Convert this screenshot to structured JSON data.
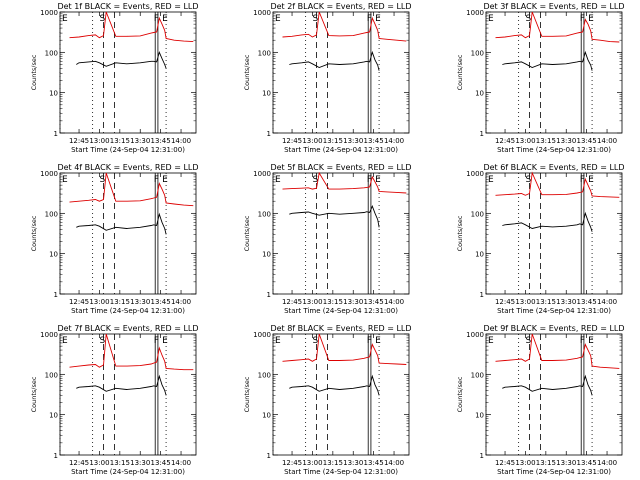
{
  "figure": {
    "start_time_label": "Start Time (24-Sep-04 12:31:00)",
    "ylabel": "Counts/sec",
    "x_ticks": [
      "12:45",
      "13:00",
      "13:15",
      "13:30",
      "13:45",
      "14:00"
    ],
    "y_ticks": [
      "1",
      "10",
      "100",
      "1000"
    ],
    "series_colors": {
      "events": "#000000",
      "lld": "#dd0000"
    },
    "markers": [
      {
        "label": "E",
        "time": "12:31",
        "style": "dotted"
      },
      {
        "label": "",
        "time": "12:55",
        "style": "dotted"
      },
      {
        "label": "S",
        "time": "13:03",
        "style": "dashed"
      },
      {
        "label": "",
        "time": "13:11",
        "style": "dashed"
      },
      {
        "label": "",
        "time": "13:41",
        "style": "solid"
      },
      {
        "label": "F",
        "time": "13:43",
        "style": "solid"
      },
      {
        "label": "E",
        "time": "13:49",
        "style": "dotted"
      }
    ]
  },
  "chart_data": [
    {
      "type": "line",
      "title": "Det 1f BLACK = Events, RED = LLD",
      "xlabel": "Start Time (24-Sep-04 12:31:00)",
      "ylabel": "Counts/sec",
      "yscale": "log",
      "ylim": [
        1,
        1000
      ],
      "xlim": [
        "12:31",
        "14:11"
      ],
      "series": [
        {
          "time": [
            "12:38",
            "12:45",
            "12:52",
            "12:57",
            "13:00",
            "13:03",
            "13:05",
            "13:12",
            "13:20",
            "13:30",
            "13:38",
            "13:40",
            "13:42",
            "13:44",
            "13:46",
            "13:48",
            "13:49",
            "13:55",
            "14:02",
            "14:09"
          ],
          "values": [
            230,
            240,
            260,
            270,
            230,
            260,
            1000,
            250,
            250,
            255,
            300,
            310,
            320,
            700,
            500,
            350,
            220,
            200,
            190,
            185
          ]
        },
        {
          "time": [
            "12:43",
            "12:45",
            "12:52",
            "12:57",
            "13:00",
            "13:05",
            "13:12",
            "13:20",
            "13:30",
            "13:38",
            "13:40",
            "13:42",
            "13:44",
            "13:46",
            "13:48",
            "13:49"
          ],
          "values": [
            50,
            55,
            58,
            60,
            55,
            45,
            55,
            52,
            55,
            60,
            60,
            58,
            100,
            70,
            50,
            40
          ]
        }
      ]
    },
    {
      "type": "line",
      "title": "Det 2f BLACK = Events, RED = LLD",
      "xlabel": "Start Time (24-Sep-04 12:31:00)",
      "ylabel": "Counts/sec",
      "yscale": "log",
      "ylim": [
        1,
        1000
      ],
      "xlim": [
        "12:31",
        "14:11"
      ],
      "series": [
        {
          "time": [
            "12:38",
            "12:45",
            "12:52",
            "12:57",
            "13:00",
            "13:03",
            "13:05",
            "13:12",
            "13:20",
            "13:30",
            "13:38",
            "13:40",
            "13:42",
            "13:44",
            "13:46",
            "13:48",
            "13:49",
            "13:55",
            "14:02",
            "14:09"
          ],
          "values": [
            240,
            250,
            270,
            280,
            240,
            270,
            1000,
            260,
            255,
            260,
            300,
            310,
            320,
            700,
            500,
            350,
            220,
            210,
            200,
            190
          ]
        },
        {
          "time": [
            "12:43",
            "12:45",
            "12:52",
            "12:57",
            "13:00",
            "13:05",
            "13:12",
            "13:20",
            "13:30",
            "13:38",
            "13:40",
            "13:42",
            "13:44",
            "13:46",
            "13:48",
            "13:49"
          ],
          "values": [
            50,
            52,
            55,
            58,
            52,
            42,
            52,
            50,
            52,
            58,
            60,
            58,
            100,
            65,
            48,
            35
          ]
        }
      ]
    },
    {
      "type": "line",
      "title": "Det 3f BLACK = Events, RED = LLD",
      "xlabel": "Start Time (24-Sep-04 12:31:00)",
      "ylabel": "Counts/sec",
      "yscale": "log",
      "ylim": [
        1,
        1000
      ],
      "xlim": [
        "12:31",
        "14:11"
      ],
      "series": [
        {
          "time": [
            "12:38",
            "12:45",
            "12:52",
            "12:57",
            "13:00",
            "13:03",
            "13:05",
            "13:12",
            "13:20",
            "13:30",
            "13:38",
            "13:40",
            "13:42",
            "13:44",
            "13:46",
            "13:48",
            "13:49",
            "13:55",
            "14:02",
            "14:09"
          ],
          "values": [
            230,
            240,
            260,
            270,
            230,
            260,
            1000,
            250,
            250,
            255,
            300,
            310,
            320,
            650,
            500,
            340,
            210,
            200,
            185,
            180
          ]
        },
        {
          "time": [
            "12:43",
            "12:45",
            "12:52",
            "12:57",
            "13:00",
            "13:05",
            "13:12",
            "13:20",
            "13:30",
            "13:38",
            "13:40",
            "13:42",
            "13:44",
            "13:46",
            "13:48",
            "13:49"
          ],
          "values": [
            50,
            52,
            55,
            58,
            52,
            42,
            52,
            50,
            52,
            58,
            60,
            58,
            100,
            65,
            48,
            35
          ]
        }
      ]
    },
    {
      "type": "line",
      "title": "Det 4f BLACK = Events, RED = LLD",
      "xlabel": "Start Time (24-Sep-04 12:31:00)",
      "ylabel": "Counts/sec",
      "yscale": "log",
      "ylim": [
        1,
        1000
      ],
      "xlim": [
        "12:31",
        "14:11"
      ],
      "series": [
        {
          "time": [
            "12:38",
            "12:45",
            "12:52",
            "12:57",
            "13:00",
            "13:03",
            "13:05",
            "13:12",
            "13:20",
            "13:30",
            "13:38",
            "13:40",
            "13:42",
            "13:44",
            "13:46",
            "13:48",
            "13:49",
            "13:55",
            "14:02",
            "14:09"
          ],
          "values": [
            190,
            200,
            210,
            220,
            200,
            220,
            1000,
            200,
            200,
            205,
            230,
            240,
            250,
            550,
            400,
            280,
            180,
            170,
            160,
            155
          ]
        },
        {
          "time": [
            "12:43",
            "12:45",
            "12:52",
            "12:57",
            "13:00",
            "13:05",
            "13:12",
            "13:20",
            "13:30",
            "13:38",
            "13:40",
            "13:42",
            "13:44",
            "13:46",
            "13:48",
            "13:49"
          ],
          "values": [
            45,
            48,
            50,
            52,
            48,
            38,
            45,
            42,
            45,
            50,
            52,
            50,
            95,
            60,
            42,
            30
          ]
        }
      ]
    },
    {
      "type": "line",
      "title": "Det 5f BLACK = Events, RED = LLD",
      "xlabel": "Start Time (24-Sep-04 12:31:00)",
      "ylabel": "Counts/sec",
      "yscale": "log",
      "ylim": [
        1,
        1000
      ],
      "xlim": [
        "12:31",
        "14:11"
      ],
      "series": [
        {
          "time": [
            "12:38",
            "12:45",
            "12:52",
            "12:57",
            "13:00",
            "13:03",
            "13:05",
            "13:12",
            "13:20",
            "13:30",
            "13:38",
            "13:40",
            "13:42",
            "13:44",
            "13:46",
            "13:48",
            "13:49",
            "13:55",
            "14:02",
            "14:09"
          ],
          "values": [
            400,
            410,
            420,
            430,
            400,
            420,
            1000,
            400,
            400,
            410,
            430,
            440,
            450,
            800,
            600,
            450,
            350,
            340,
            330,
            320
          ]
        },
        {
          "time": [
            "12:43",
            "12:45",
            "12:52",
            "12:57",
            "13:00",
            "13:05",
            "13:12",
            "13:20",
            "13:30",
            "13:38",
            "13:40",
            "13:42",
            "13:44",
            "13:46",
            "13:48",
            "13:49"
          ],
          "values": [
            95,
            100,
            105,
            108,
            100,
            90,
            100,
            95,
            100,
            105,
            110,
            105,
            150,
            100,
            70,
            45
          ]
        }
      ]
    },
    {
      "type": "line",
      "title": "Det 6f BLACK = Events, RED = LLD",
      "xlabel": "Start Time (24-Sep-04 12:31:00)",
      "ylabel": "Counts/sec",
      "yscale": "log",
      "ylim": [
        1,
        1000
      ],
      "xlim": [
        "12:31",
        "14:11"
      ],
      "series": [
        {
          "time": [
            "12:38",
            "12:45",
            "12:52",
            "12:57",
            "13:00",
            "13:03",
            "13:05",
            "13:12",
            "13:20",
            "13:30",
            "13:38",
            "13:40",
            "13:42",
            "13:44",
            "13:46",
            "13:48",
            "13:49",
            "13:55",
            "14:02",
            "14:09"
          ],
          "values": [
            280,
            290,
            300,
            310,
            280,
            310,
            1000,
            290,
            290,
            295,
            320,
            330,
            340,
            700,
            500,
            360,
            270,
            260,
            255,
            250
          ]
        },
        {
          "time": [
            "12:43",
            "12:45",
            "12:52",
            "12:57",
            "13:00",
            "13:05",
            "13:12",
            "13:20",
            "13:30",
            "13:38",
            "13:40",
            "13:42",
            "13:44",
            "13:46",
            "13:48",
            "13:49"
          ],
          "values": [
            50,
            52,
            55,
            58,
            52,
            42,
            48,
            46,
            48,
            52,
            55,
            52,
            100,
            65,
            45,
            35
          ]
        }
      ]
    },
    {
      "type": "line",
      "title": "Det 7f BLACK = Events, RED = LLD",
      "xlabel": "Start Time (24-Sep-04 12:31:00)",
      "ylabel": "Counts/sec",
      "yscale": "log",
      "ylim": [
        1,
        1000
      ],
      "xlim": [
        "12:31",
        "14:11"
      ],
      "series": [
        {
          "time": [
            "12:38",
            "12:45",
            "12:52",
            "12:57",
            "13:00",
            "13:03",
            "13:05",
            "13:12",
            "13:20",
            "13:30",
            "13:38",
            "13:40",
            "13:42",
            "13:44",
            "13:46",
            "13:48",
            "13:49",
            "13:55",
            "14:02",
            "14:09"
          ],
          "values": [
            150,
            160,
            170,
            175,
            150,
            170,
            1000,
            160,
            160,
            165,
            180,
            190,
            200,
            450,
            300,
            210,
            140,
            135,
            130,
            130
          ]
        },
        {
          "time": [
            "12:43",
            "12:45",
            "12:52",
            "12:57",
            "13:00",
            "13:05",
            "13:12",
            "13:20",
            "13:30",
            "13:38",
            "13:40",
            "13:42",
            "13:44",
            "13:46",
            "13:48",
            "13:49"
          ],
          "values": [
            45,
            48,
            50,
            52,
            48,
            38,
            45,
            42,
            45,
            50,
            52,
            50,
            90,
            55,
            40,
            30
          ]
        }
      ]
    },
    {
      "type": "line",
      "title": "Det 8f BLACK = Events, RED = LLD",
      "xlabel": "Start Time (24-Sep-04 12:31:00)",
      "ylabel": "Counts/sec",
      "yscale": "log",
      "ylim": [
        1,
        1000
      ],
      "xlim": [
        "12:31",
        "14:11"
      ],
      "series": [
        {
          "time": [
            "12:38",
            "12:45",
            "12:52",
            "12:57",
            "13:00",
            "13:03",
            "13:05",
            "13:12",
            "13:20",
            "13:30",
            "13:38",
            "13:40",
            "13:42",
            "13:44",
            "13:46",
            "13:48",
            "13:49",
            "13:55",
            "14:02",
            "14:09"
          ],
          "values": [
            210,
            220,
            230,
            240,
            210,
            240,
            1000,
            220,
            220,
            225,
            250,
            260,
            270,
            550,
            400,
            290,
            190,
            185,
            180,
            175
          ]
        },
        {
          "time": [
            "12:43",
            "12:45",
            "12:52",
            "12:57",
            "13:00",
            "13:05",
            "13:12",
            "13:20",
            "13:30",
            "13:38",
            "13:40",
            "13:42",
            "13:44",
            "13:46",
            "13:48",
            "13:49"
          ],
          "values": [
            45,
            48,
            50,
            52,
            48,
            38,
            45,
            42,
            45,
            50,
            52,
            50,
            90,
            55,
            40,
            30
          ]
        }
      ]
    },
    {
      "type": "line",
      "title": "Det 9f BLACK = Events, RED = LLD",
      "xlabel": "Start Time (24-Sep-04 12:31:00)",
      "ylabel": "Counts/sec",
      "yscale": "log",
      "ylim": [
        1,
        1000
      ],
      "xlim": [
        "12:31",
        "14:11"
      ],
      "series": [
        {
          "time": [
            "12:38",
            "12:45",
            "12:52",
            "12:57",
            "13:00",
            "13:03",
            "13:05",
            "13:12",
            "13:20",
            "13:30",
            "13:38",
            "13:40",
            "13:42",
            "13:44",
            "13:46",
            "13:48",
            "13:49",
            "13:55",
            "14:02",
            "14:09"
          ],
          "values": [
            210,
            220,
            230,
            240,
            210,
            240,
            1000,
            220,
            220,
            225,
            250,
            260,
            270,
            550,
            400,
            290,
            160,
            150,
            145,
            140
          ]
        },
        {
          "time": [
            "12:43",
            "12:45",
            "12:52",
            "12:57",
            "13:00",
            "13:05",
            "13:12",
            "13:20",
            "13:30",
            "13:38",
            "13:40",
            "13:42",
            "13:44",
            "13:46",
            "13:48",
            "13:49"
          ],
          "values": [
            45,
            48,
            50,
            52,
            48,
            38,
            45,
            42,
            45,
            50,
            52,
            50,
            90,
            55,
            40,
            30
          ]
        }
      ]
    }
  ]
}
